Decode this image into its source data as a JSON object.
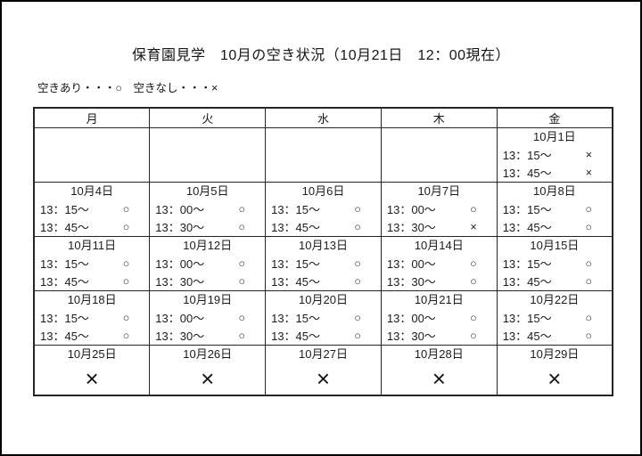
{
  "page": {
    "title": "保育園見学　10月の空き状況（10月21日　12：00現在）",
    "legend": "空きあり・・・○　空きなし・・・×"
  },
  "symbols": {
    "available": "○",
    "unavailable": "×"
  },
  "table": {
    "headers": [
      "月",
      "火",
      "水",
      "木",
      "金"
    ],
    "weeks": [
      {
        "type": "slots",
        "days": [
          null,
          null,
          null,
          null,
          {
            "date": "10月1日",
            "slots": [
              {
                "time": "13：15～",
                "status": "×"
              },
              {
                "time": "13：45～",
                "status": "×"
              }
            ]
          }
        ]
      },
      {
        "type": "slots",
        "days": [
          {
            "date": "10月4日",
            "slots": [
              {
                "time": "13：15～",
                "status": "○"
              },
              {
                "time": "13：45～",
                "status": "○"
              }
            ]
          },
          {
            "date": "10月5日",
            "slots": [
              {
                "time": "13：00～",
                "status": "○"
              },
              {
                "time": "13：30～",
                "status": "○"
              }
            ]
          },
          {
            "date": "10月6日",
            "slots": [
              {
                "time": "13：15～",
                "status": "○"
              },
              {
                "time": "13：45～",
                "status": "○"
              }
            ]
          },
          {
            "date": "10月7日",
            "slots": [
              {
                "time": "13：00～",
                "status": "○"
              },
              {
                "time": "13：30～",
                "status": "×"
              }
            ]
          },
          {
            "date": "10月8日",
            "slots": [
              {
                "time": "13：15～",
                "status": "○"
              },
              {
                "time": "13：45～",
                "status": "○"
              }
            ]
          }
        ]
      },
      {
        "type": "slots",
        "days": [
          {
            "date": "10月11日",
            "slots": [
              {
                "time": "13：15～",
                "status": "○"
              },
              {
                "time": "13：45～",
                "status": "○"
              }
            ]
          },
          {
            "date": "10月12日",
            "slots": [
              {
                "time": "13：00～",
                "status": "○"
              },
              {
                "time": "13：30～",
                "status": "○"
              }
            ]
          },
          {
            "date": "10月13日",
            "slots": [
              {
                "time": "13：15～",
                "status": "○"
              },
              {
                "time": "13：45～",
                "status": "○"
              }
            ]
          },
          {
            "date": "10月14日",
            "slots": [
              {
                "time": "13：00～",
                "status": "○"
              },
              {
                "time": "13：30～",
                "status": "○"
              }
            ]
          },
          {
            "date": "10月15日",
            "slots": [
              {
                "time": "13：15～",
                "status": "○"
              },
              {
                "time": "13：45～",
                "status": "○"
              }
            ]
          }
        ]
      },
      {
        "type": "slots",
        "days": [
          {
            "date": "10月18日",
            "slots": [
              {
                "time": "13：15～",
                "status": "○"
              },
              {
                "time": "13：45～",
                "status": "○"
              }
            ]
          },
          {
            "date": "10月19日",
            "slots": [
              {
                "time": "13：00～",
                "status": "○"
              },
              {
                "time": "13：30～",
                "status": "○"
              }
            ]
          },
          {
            "date": "10月20日",
            "slots": [
              {
                "time": "13：15～",
                "status": "○"
              },
              {
                "time": "13：45～",
                "status": "○"
              }
            ]
          },
          {
            "date": "10月21日",
            "slots": [
              {
                "time": "13：00～",
                "status": "○"
              },
              {
                "time": "13：30～",
                "status": "○"
              }
            ]
          },
          {
            "date": "10月22日",
            "slots": [
              {
                "time": "13：15～",
                "status": "○"
              },
              {
                "time": "13：45～",
                "status": "○"
              }
            ]
          }
        ]
      },
      {
        "type": "closed",
        "days": [
          {
            "date": "10月25日",
            "mark": "×"
          },
          {
            "date": "10月26日",
            "mark": "×"
          },
          {
            "date": "10月27日",
            "mark": "×"
          },
          {
            "date": "10月28日",
            "mark": "×"
          },
          {
            "date": "10月29日",
            "mark": "×"
          }
        ]
      }
    ]
  }
}
